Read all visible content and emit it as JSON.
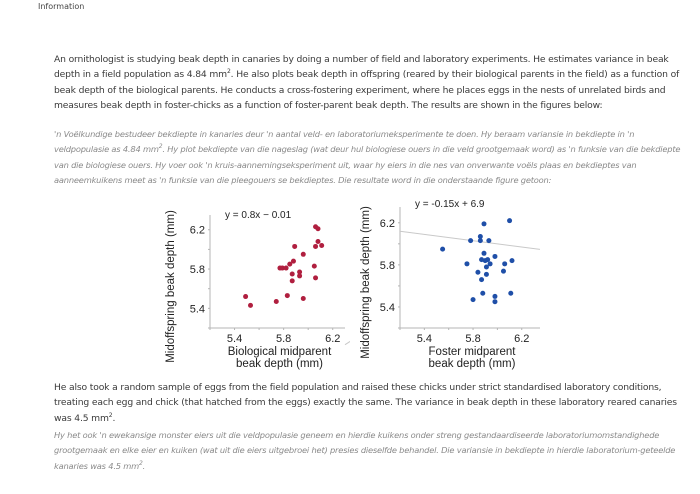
{
  "header": {
    "title": "Information"
  },
  "intro": {
    "en": {
      "pre": "An ornithologist is studying beak depth in canaries by doing a number of field and laboratory experiments. He estimates variance in beak depth in a field population as 4.84 mm",
      "sup": "2",
      "post": ". He also plots beak depth in offspring (reared by their biological parents in the field) as a function of beak depth of the biological parents. He conducts a cross-fostering experiment, where he places eggs in the nests of unrelated birds and measures beak depth in foster-chicks as a function of foster-parent beak depth. The results are shown in the figures below:"
    },
    "af": {
      "pre": "'n Voëlkundige bestudeer bekdiepte in kanaries deur 'n aantal veld- en laboratoriumeksperimente te doen. Hy beraam variansie in bekdiepte in 'n veldpopulasie as 4.84 mm",
      "sup": "2",
      "post": ". Hy plot bekdiepte van die nageslag (wat deur hul biologiese ouers in die veld grootgemaak word) as 'n funksie van die bekdiepte van die biologiese ouers. Hy voer ook 'n kruis-aannemingseksperiment uit, waar hy eiers in die nes van onverwante voëls plaas en bekdieptes van aanneemkuikens meet as 'n funksie van die pleegouers se bekdieptes. Die resultate word in die onderstaande figure getoon:"
    }
  },
  "followup": {
    "en": {
      "pre": "He also took a random sample of eggs from the field population and raised these chicks under strict standardised laboratory conditions, treating each egg and chick (that hatched from the eggs) exactly the same. The variance in beak depth in these laboratory reared canaries was 4.5 mm",
      "sup": "2",
      "post": "."
    },
    "af": {
      "pre": "Hy het ook 'n ewekansige monster eiers uit die veldpopulasie geneem en hierdie kuikens onder streng gestandaardiseerde laboratoriumomstandighede grootgemaak en elke eier en kuiken (wat uit die eiers uitgebroei het) presies dieselfde behandel. Die variansie in bekdiepte in hierdie laboratorium-geteelde kanaries was 4.5 mm",
      "sup": "2",
      "post": "."
    }
  },
  "chart_data": [
    {
      "type": "scatter",
      "title": "",
      "annotation": "y = 0.8x − 0.01",
      "xlabel": "Biological midparent beak depth (mm)",
      "xlabel_lines": [
        "Biological midparent",
        "beak depth (mm)"
      ],
      "ylabel": "Midoffspring beak depth (mm)",
      "xticks": [
        5.4,
        5.8,
        6.2
      ],
      "yticks": [
        5.4,
        5.8,
        6.2
      ],
      "xlim": [
        5.2,
        6.3
      ],
      "ylim": [
        5.2,
        6.35
      ],
      "grid": false,
      "color": "#b01f3f",
      "regression": {
        "slope": 0.8,
        "intercept": -0.01
      },
      "points": [
        [
          5.49,
          5.52
        ],
        [
          5.53,
          5.43
        ],
        [
          5.74,
          5.47
        ],
        [
          5.83,
          5.53
        ],
        [
          5.96,
          5.5
        ],
        [
          5.77,
          5.81
        ],
        [
          5.79,
          5.81
        ],
        [
          5.82,
          5.81
        ],
        [
          5.85,
          5.85
        ],
        [
          5.88,
          5.88
        ],
        [
          5.87,
          5.75
        ],
        [
          5.87,
          5.68
        ],
        [
          5.93,
          5.77
        ],
        [
          5.93,
          5.73
        ],
        [
          5.96,
          5.95
        ],
        [
          5.89,
          6.03
        ],
        [
          6.05,
          5.83
        ],
        [
          6.06,
          5.71
        ],
        [
          6.06,
          6.03
        ],
        [
          6.08,
          6.08
        ],
        [
          6.11,
          6.04
        ],
        [
          6.06,
          6.23
        ],
        [
          6.08,
          6.21
        ]
      ]
    },
    {
      "type": "scatter",
      "title": "",
      "annotation": "y = -0.15x + 6.9",
      "xlabel": "Foster midparent beak depth (mm)",
      "xlabel_lines": [
        "Foster midparent",
        "beak depth (mm)"
      ],
      "ylabel": "Midoffspring beak depth (mm)",
      "xticks": [
        5.4,
        5.8,
        6.2
      ],
      "yticks": [
        5.4,
        5.8,
        6.2
      ],
      "xlim": [
        5.2,
        6.35
      ],
      "ylim": [
        5.2,
        6.35
      ],
      "grid": false,
      "color": "#1f4fa8",
      "regression": {
        "slope": -0.15,
        "intercept": 6.9
      },
      "points": [
        [
          5.55,
          5.95
        ],
        [
          5.75,
          5.81
        ],
        [
          5.78,
          6.03
        ],
        [
          5.86,
          6.03
        ],
        [
          5.86,
          6.07
        ],
        [
          5.89,
          6.19
        ],
        [
          5.93,
          6.03
        ],
        [
          6.1,
          6.22
        ],
        [
          5.89,
          5.91
        ],
        [
          5.98,
          5.88
        ],
        [
          5.87,
          5.85
        ],
        [
          5.9,
          5.84
        ],
        [
          5.92,
          5.85
        ],
        [
          5.94,
          5.81
        ],
        [
          5.91,
          5.78
        ],
        [
          5.84,
          5.73
        ],
        [
          5.91,
          5.71
        ],
        [
          5.87,
          5.66
        ],
        [
          6.06,
          5.81
        ],
        [
          6.12,
          5.84
        ],
        [
          6.05,
          5.74
        ],
        [
          5.88,
          5.53
        ],
        [
          5.98,
          5.5
        ],
        [
          5.98,
          5.45
        ],
        [
          6.11,
          5.53
        ],
        [
          5.8,
          5.47
        ]
      ]
    }
  ]
}
